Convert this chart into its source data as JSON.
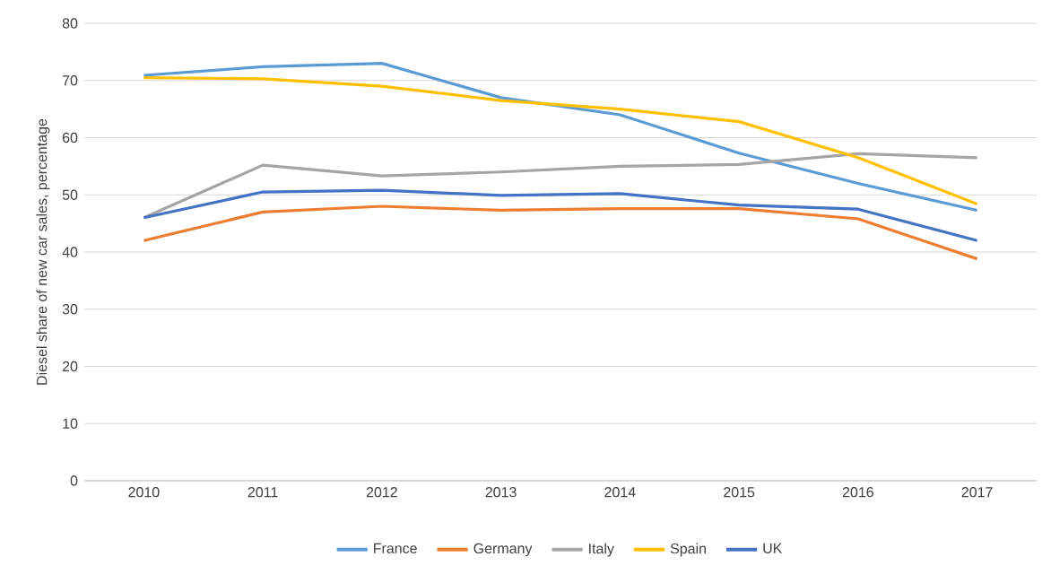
{
  "chart_data": {
    "type": "line",
    "ylabel": "Diesel share of new car sales, percentage",
    "categories": [
      "2010",
      "2011",
      "2012",
      "2013",
      "2014",
      "2015",
      "2016",
      "2017"
    ],
    "series": [
      {
        "name": "France",
        "color": "#5b9bd5",
        "values": [
          70.9,
          72.4,
          73,
          67,
          64,
          57.3,
          52,
          47.3
        ]
      },
      {
        "name": "Germany",
        "color": "#ed7d31",
        "values": [
          42,
          47,
          48,
          47.3,
          47.6,
          47.6,
          45.8,
          38.8
        ]
      },
      {
        "name": "Italy",
        "color": "#a5a5a5",
        "values": [
          46,
          55.2,
          53.3,
          54,
          55,
          55.3,
          57.2,
          56.5
        ]
      },
      {
        "name": "Spain",
        "color": "#ffc000",
        "values": [
          70.5,
          70.3,
          69,
          66.5,
          65,
          62.8,
          56.5,
          48.4
        ]
      },
      {
        "name": "UK",
        "color": "#4472c4",
        "values": [
          46,
          50.5,
          50.8,
          49.9,
          50.2,
          48.2,
          47.5,
          42
        ]
      }
    ],
    "ylim": [
      0,
      80
    ],
    "yticks": [
      0,
      10,
      20,
      30,
      40,
      50,
      60,
      70,
      80
    ],
    "grid": "y",
    "legend": "bottom",
    "marker": "none",
    "line_style": "solid"
  }
}
